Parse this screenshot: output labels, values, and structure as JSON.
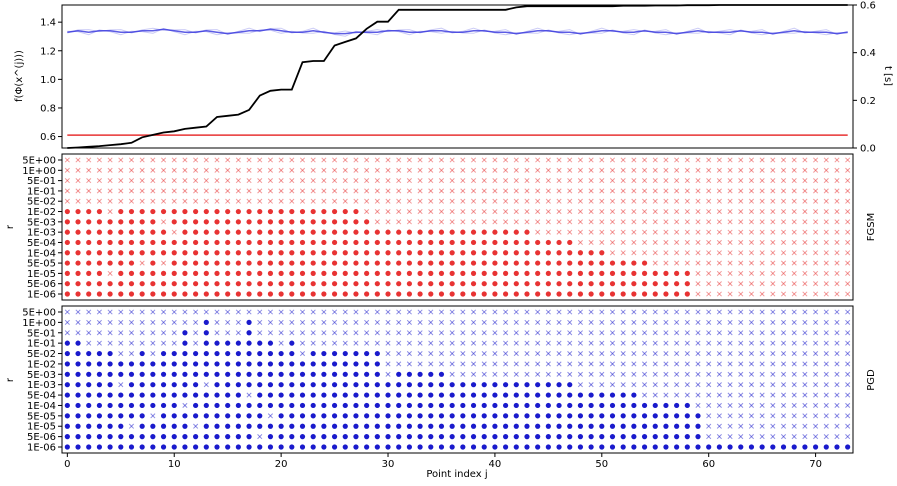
{
  "chart_data": [
    {
      "type": "line",
      "ylabel_left": "f(Φ(x^(j)))",
      "ylabel_right": "t [s]",
      "ylim_left": [
        0.52,
        1.52
      ],
      "ylim_right": [
        0.0,
        0.6
      ],
      "yticks_left": [
        "0.6",
        "0.8",
        "1.0",
        "1.2",
        "1.4"
      ],
      "yticks_right": [
        "0.0",
        "0.2",
        "0.4",
        "0.6"
      ],
      "xlim": [
        -0.5,
        73.5
      ],
      "grid": false,
      "colors": {
        "blue": "#3333dd",
        "red": "#e83333",
        "black": "#000000"
      },
      "series": [
        {
          "axis": "left",
          "color": "#3333dd",
          "values": [
            1.33,
            1.34,
            1.33,
            1.34,
            1.34,
            1.33,
            1.33,
            1.34,
            1.34,
            1.35,
            1.34,
            1.33,
            1.33,
            1.34,
            1.33,
            1.32,
            1.33,
            1.34,
            1.34,
            1.35,
            1.34,
            1.33,
            1.33,
            1.34,
            1.33,
            1.32,
            1.32,
            1.33,
            1.33,
            1.33,
            1.34,
            1.34,
            1.33,
            1.33,
            1.34,
            1.34,
            1.33,
            1.33,
            1.34,
            1.34,
            1.33,
            1.33,
            1.32,
            1.33,
            1.34,
            1.34,
            1.33,
            1.33,
            1.32,
            1.33,
            1.34,
            1.34,
            1.33,
            1.33,
            1.34,
            1.33,
            1.33,
            1.32,
            1.33,
            1.34,
            1.33,
            1.33,
            1.33,
            1.34,
            1.33,
            1.33,
            1.32,
            1.33,
            1.34,
            1.33,
            1.33,
            1.33,
            1.32,
            1.33
          ]
        },
        {
          "axis": "left",
          "color": "#e83333",
          "values": [
            0.61,
            0.61,
            0.61,
            0.61,
            0.61,
            0.61,
            0.61,
            0.61,
            0.61,
            0.61,
            0.61,
            0.61,
            0.61,
            0.61,
            0.61,
            0.61,
            0.61,
            0.61,
            0.61,
            0.61,
            0.61,
            0.61,
            0.61,
            0.61,
            0.61,
            0.61,
            0.61,
            0.61,
            0.61,
            0.61,
            0.61,
            0.61,
            0.61,
            0.61,
            0.61,
            0.61,
            0.61,
            0.61,
            0.61,
            0.61,
            0.61,
            0.61,
            0.61,
            0.61,
            0.61,
            0.61,
            0.61,
            0.61,
            0.61,
            0.61,
            0.61,
            0.61,
            0.61,
            0.61,
            0.61,
            0.61,
            0.61,
            0.61,
            0.61,
            0.61,
            0.61,
            0.61,
            0.61,
            0.61,
            0.61,
            0.61,
            0.61,
            0.61,
            0.61,
            0.61,
            0.61,
            0.61,
            0.61,
            0.61
          ]
        },
        {
          "axis": "right",
          "color": "#000000",
          "values": [
            0.0,
            0.002,
            0.005,
            0.008,
            0.012,
            0.016,
            0.022,
            0.045,
            0.055,
            0.065,
            0.07,
            0.08,
            0.085,
            0.09,
            0.13,
            0.135,
            0.14,
            0.16,
            0.22,
            0.24,
            0.245,
            0.245,
            0.36,
            0.365,
            0.365,
            0.43,
            0.445,
            0.46,
            0.5,
            0.53,
            0.53,
            0.58,
            0.58,
            0.58,
            0.58,
            0.58,
            0.58,
            0.58,
            0.58,
            0.58,
            0.58,
            0.58,
            0.59,
            0.595,
            0.595,
            0.595,
            0.595,
            0.595,
            0.595,
            0.595,
            0.595,
            0.595,
            0.597,
            0.597,
            0.597,
            0.598,
            0.598,
            0.598,
            0.599,
            0.599,
            0.599,
            0.6,
            0.6,
            0.6,
            0.6,
            0.6,
            0.6,
            0.6,
            0.6,
            0.6,
            0.6,
            0.6,
            0.6,
            0.6
          ]
        }
      ]
    },
    {
      "type": "scatter",
      "title_right": "FGSM",
      "ylabel": "r",
      "yticks": [
        "5E+00",
        "1E+00",
        "5E-01",
        "1E-01",
        "5E-02",
        "1E-02",
        "5E-03",
        "1E-03",
        "5E-04",
        "1E-04",
        "5E-05",
        "1E-05",
        "5E-06",
        "1E-06"
      ],
      "marker_success": "dot",
      "marker_fail": "x",
      "color": "#e83333",
      "success_counts_per_point": [
        9,
        9,
        9,
        9,
        8,
        9,
        9,
        9,
        9,
        9,
        9,
        9,
        9,
        9,
        9,
        9,
        9,
        9,
        9,
        9,
        9,
        9,
        9,
        9,
        9,
        9,
        9,
        9,
        8,
        7,
        7,
        7,
        7,
        7,
        7,
        7,
        7,
        7,
        7,
        7,
        7,
        7,
        7,
        7,
        6,
        6,
        6,
        6,
        5,
        5,
        5,
        4,
        4,
        4,
        4,
        3,
        3,
        3,
        3,
        0,
        0,
        0,
        0,
        0,
        0,
        0,
        0,
        0,
        0,
        0,
        0,
        0,
        0,
        0
      ],
      "fgsm_holes": [
        [
          4,
          2
        ],
        [
          7,
          3
        ],
        [
          9,
          3
        ],
        [
          9,
          7
        ],
        [
          9,
          9
        ],
        [
          10,
          6
        ]
      ]
    },
    {
      "type": "scatter",
      "title_right": "PGD",
      "ylabel": "r",
      "xlabel": "Point index j",
      "xticks": [
        "0",
        "10",
        "20",
        "30",
        "40",
        "50",
        "60",
        "70"
      ],
      "yticks": [
        "5E+00",
        "1E+00",
        "5E-01",
        "1E-01",
        "5E-02",
        "1E-02",
        "5E-03",
        "1E-03",
        "5E-04",
        "1E-04",
        "5E-05",
        "1E-05",
        "5E-06",
        "1E-06"
      ],
      "marker_success": "dot",
      "marker_fail": "x",
      "color": "#1a1acc",
      "success_counts_per_point": [
        11,
        11,
        10,
        10,
        10,
        9,
        9,
        10,
        9,
        10,
        10,
        12,
        10,
        13,
        11,
        11,
        11,
        13,
        11,
        11,
        10,
        11,
        10,
        10,
        10,
        10,
        10,
        10,
        10,
        10,
        8,
        8,
        8,
        8,
        8,
        8,
        7,
        7,
        7,
        7,
        7,
        7,
        7,
        7,
        7,
        7,
        7,
        7,
        6,
        6,
        6,
        6,
        6,
        6,
        5,
        5,
        5,
        5,
        5,
        4,
        1,
        1,
        1,
        1,
        1,
        1,
        1,
        1,
        1,
        1,
        1,
        1,
        1,
        1
      ],
      "pgd_holes": [
        [
          5,
          6
        ],
        [
          6,
          2
        ],
        [
          8,
          3
        ],
        [
          11,
          4
        ],
        [
          12,
          2
        ],
        [
          13,
          6
        ],
        [
          17,
          5
        ],
        [
          18,
          1
        ],
        [
          19,
          3
        ],
        [
          22,
          9
        ],
        [
          30,
          7
        ]
      ]
    }
  ]
}
